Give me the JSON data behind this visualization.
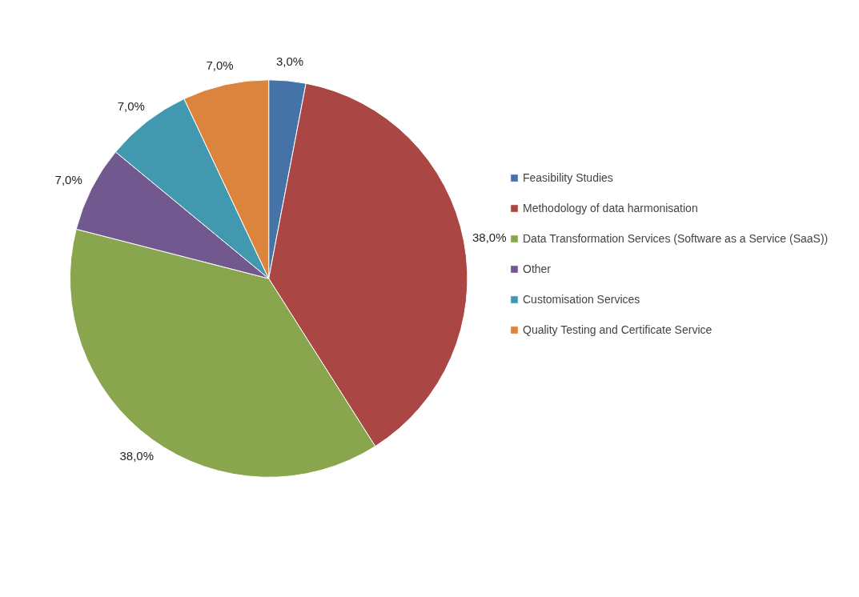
{
  "chart_data": {
    "type": "pie",
    "categories": [
      "Feasibility Studies",
      "Methodology of data harmonisation",
      "Data Transformation Services (Software as a Service (SaaS))",
      "Other",
      "Customisation Services",
      "Quality Testing and Certificate Service"
    ],
    "values": [
      3,
      38,
      38,
      7,
      7,
      7
    ],
    "colors": [
      "#4572a7",
      "#aa4643",
      "#89a54e",
      "#71588f",
      "#4198af",
      "#db843d"
    ],
    "value_labels": [
      "3,0%",
      "38,0%",
      "38,0%",
      "7,0%",
      "7,0%",
      "7,0%"
    ],
    "legend": "right"
  }
}
